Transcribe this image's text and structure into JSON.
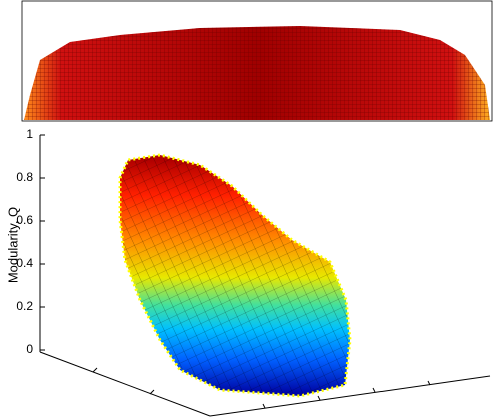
{
  "chart_data": {
    "type": "surface3d",
    "zlabel": "Modularity, Q",
    "zlim": [
      0,
      1
    ],
    "zticks": [
      0,
      0.2,
      0.4,
      0.6,
      0.8,
      1
    ]
  }
}
